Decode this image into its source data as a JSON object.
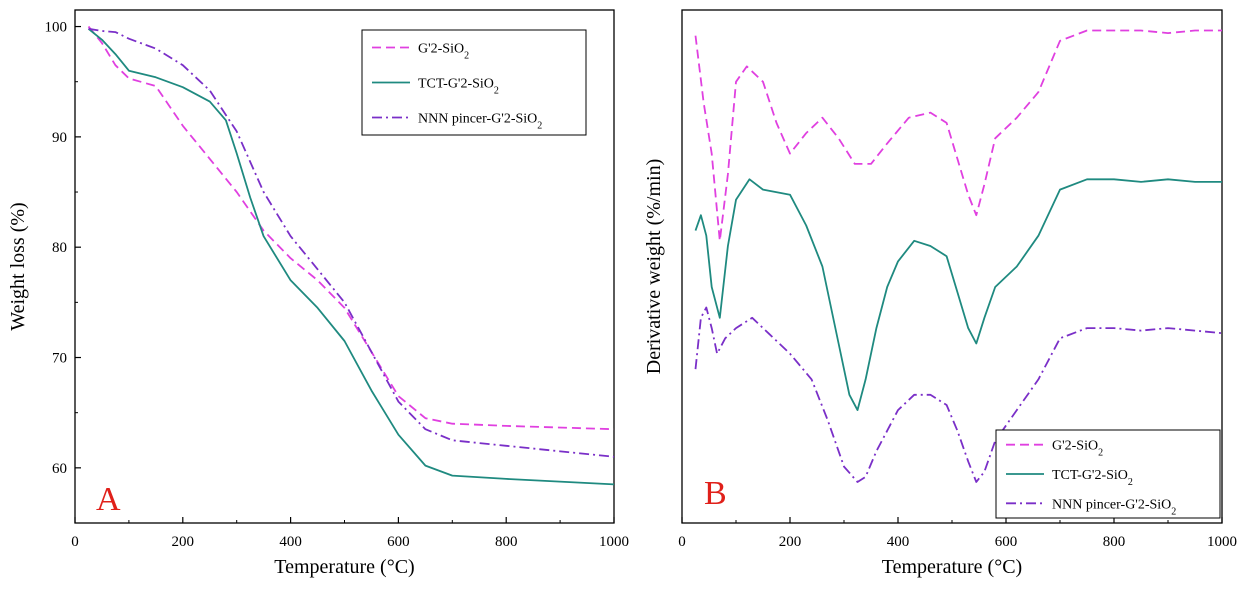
{
  "colors": {
    "g2": "#e040e0",
    "tct": "#1f8a80",
    "nnn": "#7a2fc8"
  },
  "chart_data": [
    {
      "id": "A",
      "type": "line",
      "panel_label": "A",
      "xlabel": "Temperature (°C)",
      "ylabel": "Weight loss (%)",
      "xlim": [
        0,
        1000
      ],
      "ylim": [
        55,
        101.5
      ],
      "xticks": [
        0,
        200,
        400,
        600,
        800,
        1000
      ],
      "yticks": [
        60,
        70,
        80,
        90,
        100
      ],
      "grid": false,
      "legend": {
        "position": "top-right",
        "entries": [
          {
            "series": "g2",
            "base": "G'2-SiO",
            "sub": "2"
          },
          {
            "series": "tct",
            "base": "TCT-G'2-SiO",
            "sub": "2"
          },
          {
            "series": "nnn",
            "base": "NNN pincer-G'2-SiO",
            "sub": "2"
          }
        ]
      },
      "series": [
        {
          "name": "G'2-SiO2",
          "key": "g2",
          "style": "dashed",
          "x": [
            25,
            50,
            75,
            100,
            150,
            200,
            250,
            300,
            350,
            400,
            450,
            500,
            550,
            600,
            650,
            700,
            800,
            1000
          ],
          "y": [
            100,
            98.5,
            96.5,
            95.3,
            94.6,
            91.0,
            88.0,
            85.0,
            81.5,
            79.0,
            77.0,
            74.5,
            70.5,
            66.5,
            64.5,
            64.0,
            63.8,
            63.5
          ]
        },
        {
          "name": "TCT-G'2-SiO2",
          "key": "tct",
          "style": "solid",
          "x": [
            25,
            50,
            75,
            100,
            150,
            200,
            250,
            280,
            300,
            325,
            350,
            400,
            450,
            500,
            550,
            600,
            650,
            700,
            800,
            1000
          ],
          "y": [
            99.8,
            98.8,
            97.5,
            96.0,
            95.4,
            94.5,
            93.2,
            91.5,
            88.5,
            84.5,
            81.0,
            77.0,
            74.5,
            71.5,
            67.0,
            63.0,
            60.2,
            59.3,
            59.0,
            58.5
          ]
        },
        {
          "name": "NNN pincer-G'2-SiO2",
          "key": "nnn",
          "style": "dashdot",
          "x": [
            25,
            50,
            75,
            100,
            150,
            200,
            250,
            300,
            350,
            400,
            450,
            500,
            550,
            600,
            650,
            700,
            800,
            1000
          ],
          "y": [
            99.8,
            99.6,
            99.5,
            98.9,
            98.0,
            96.5,
            94.2,
            90.5,
            85.0,
            81.0,
            78.0,
            75.0,
            70.5,
            66.0,
            63.5,
            62.5,
            62.0,
            61.0
          ]
        }
      ]
    },
    {
      "id": "B",
      "type": "line",
      "panel_label": "B",
      "xlabel": "Temperature (°C)",
      "ylabel": "Derivative weight (%/min)",
      "xlim": [
        0,
        1000
      ],
      "ylim": [
        0,
        100
      ],
      "xticks": [
        0,
        200,
        400,
        600,
        800,
        1000
      ],
      "yticks": [],
      "grid": false,
      "legend": {
        "position": "bottom-right",
        "entries": [
          {
            "series": "g2",
            "base": "G'2-SiO",
            "sub": "2"
          },
          {
            "series": "tct",
            "base": "TCT-G'2-SiO",
            "sub": "2"
          },
          {
            "series": "nnn",
            "base": "NNN pincer-G'2-SiO",
            "sub": "2"
          }
        ]
      },
      "series": [
        {
          "name": "G'2-SiO2",
          "key": "g2",
          "style": "dashed",
          "x": [
            25,
            40,
            55,
            70,
            85,
            100,
            120,
            150,
            175,
            200,
            230,
            260,
            290,
            320,
            350,
            380,
            420,
            460,
            490,
            510,
            530,
            545,
            560,
            580,
            620,
            660,
            700,
            750,
            800,
            850,
            900,
            950,
            1000
          ],
          "y": [
            95,
            82,
            72,
            55,
            68,
            86,
            89,
            86,
            78,
            72,
            76,
            79,
            75,
            70,
            70,
            74,
            79,
            80,
            78,
            71,
            64,
            60,
            66,
            75,
            79,
            84,
            94,
            96,
            96,
            96,
            95.5,
            96,
            96
          ]
        },
        {
          "name": "TCT-G'2-SiO2",
          "key": "tct",
          "style": "solid",
          "x": [
            25,
            35,
            45,
            55,
            70,
            85,
            100,
            125,
            150,
            200,
            230,
            260,
            290,
            310,
            325,
            340,
            360,
            380,
            400,
            430,
            460,
            490,
            510,
            530,
            545,
            560,
            580,
            620,
            660,
            700,
            750,
            800,
            850,
            900,
            950,
            1000
          ],
          "y": [
            57,
            60,
            56,
            46,
            40,
            54,
            63,
            67,
            65,
            64,
            58,
            50,
            35,
            25,
            22,
            28,
            38,
            46,
            51,
            55,
            54,
            52,
            45,
            38,
            35,
            40,
            46,
            50,
            56,
            65,
            67,
            67,
            66.5,
            67,
            66.5,
            66.5
          ]
        },
        {
          "name": "NNN pincer-G'2-SiO2",
          "key": "nnn",
          "style": "dashdot",
          "x": [
            25,
            35,
            45,
            55,
            65,
            80,
            100,
            130,
            160,
            200,
            240,
            270,
            300,
            325,
            340,
            360,
            380,
            400,
            430,
            460,
            490,
            510,
            530,
            545,
            560,
            580,
            620,
            660,
            700,
            750,
            800,
            850,
            900,
            950,
            1000
          ],
          "y": [
            30,
            40,
            42,
            38,
            33,
            36,
            38,
            40,
            37,
            33,
            28,
            20,
            11,
            8,
            9,
            14,
            18,
            22,
            25,
            25,
            23,
            18,
            12,
            8,
            10,
            16,
            22,
            28,
            36,
            38,
            38,
            37.5,
            38,
            37.5,
            37
          ]
        }
      ]
    }
  ]
}
